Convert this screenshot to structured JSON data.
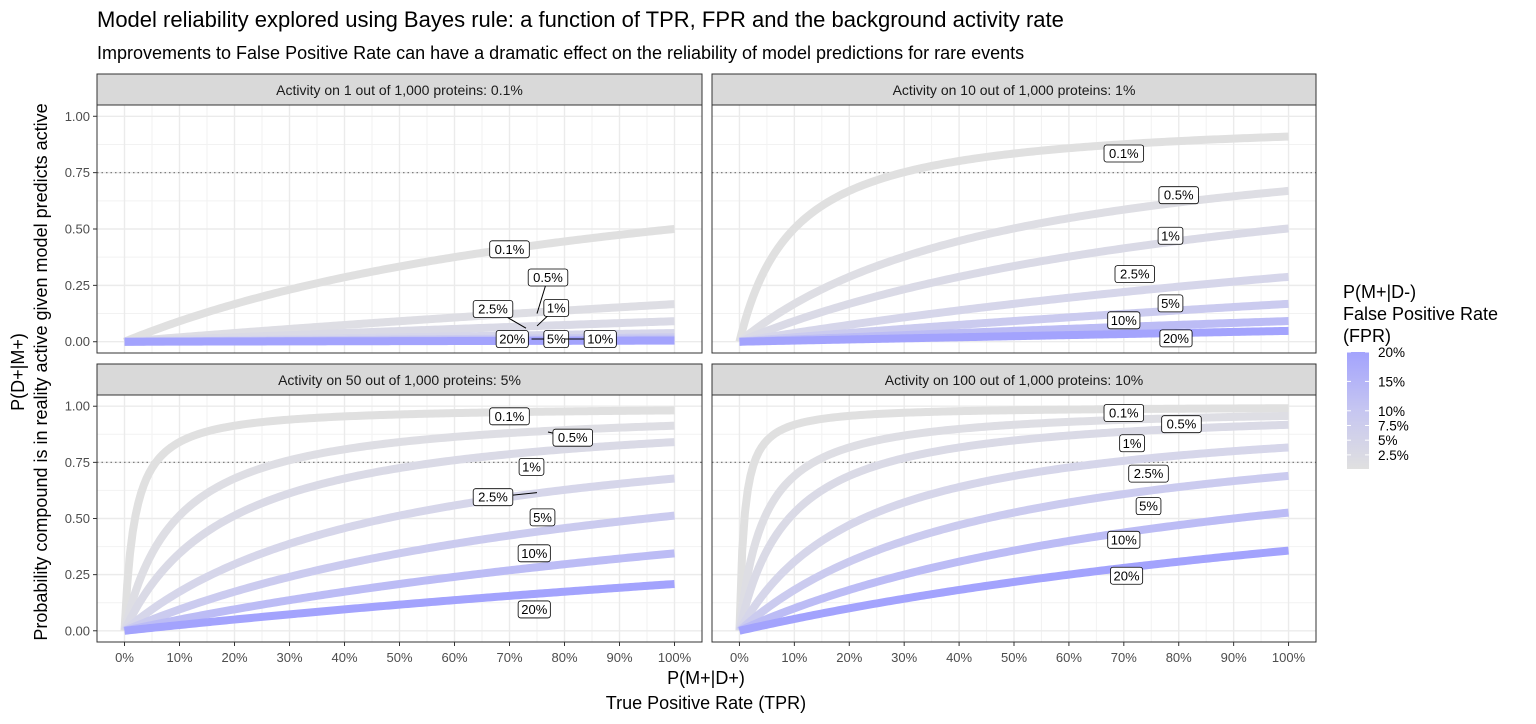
{
  "chart_data": {
    "type": "line",
    "title": "Model reliability explored using Bayes rule: a function of TPR, FPR and the background activity rate",
    "subtitle": "Improvements to False Positive Rate can have a dramatic effect on the reliability of model predictions for rare events",
    "xlabel_line1": "P(M+|D+)",
    "xlabel_line2": "True Positive Rate (TPR)",
    "ylabel_line1": "P(D+|M+)",
    "ylabel_line2": "Probability compound is in reality active given model predicts active",
    "xlim": [
      0,
      1
    ],
    "ylim": [
      0,
      1
    ],
    "x_ticks": [
      0,
      0.1,
      0.2,
      0.3,
      0.4,
      0.5,
      0.6,
      0.7,
      0.8,
      0.9,
      1.0
    ],
    "x_tick_labels": [
      "0%",
      "10%",
      "20%",
      "30%",
      "40%",
      "50%",
      "60%",
      "70%",
      "80%",
      "90%",
      "100%"
    ],
    "y_ticks": [
      0,
      0.25,
      0.5,
      0.75,
      1.0
    ],
    "y_tick_labels": [
      "0.00",
      "0.25",
      "0.50",
      "0.75",
      "1.00"
    ],
    "reference_line_y": 0.75,
    "grid": true,
    "fpr_values": [
      0.001,
      0.005,
      0.01,
      0.025,
      0.05,
      0.1,
      0.2
    ],
    "fpr_labels": [
      "0.1%",
      "0.5%",
      "1%",
      "2.5%",
      "5%",
      "10%",
      "20%"
    ],
    "fpr_colors": [
      "#e0e0e0",
      "#dedee4",
      "#dadae6",
      "#d6d6ea",
      "#cbcbef",
      "#bcbcf5",
      "#a3a3fd"
    ],
    "panels": [
      {
        "strip": "Activity on 1 out of 1,000 proteins: 0.1%",
        "prevalence": 0.001,
        "labels": [
          {
            "text": "0.1%",
            "x": 0.7,
            "y": 0.41
          },
          {
            "text": "0.5%",
            "x": 0.77,
            "y": 0.285,
            "ax": 0.75,
            "ay": 0.125
          },
          {
            "text": "1%",
            "x": 0.785,
            "y": 0.15,
            "ax": 0.75,
            "ay": 0.07
          },
          {
            "text": "2.5%",
            "x": 0.67,
            "y": 0.145,
            "ax": 0.73,
            "ay": 0.06
          },
          {
            "text": "20%",
            "x": 0.705,
            "y": 0.012
          },
          {
            "text": "5%",
            "x": 0.785,
            "y": 0.012,
            "ax": 0.74,
            "ay": 0.012
          },
          {
            "text": "10%",
            "x": 0.865,
            "y": 0.012,
            "ax": 0.8,
            "ay": 0.012
          }
        ]
      },
      {
        "strip": "Activity on 10 out of 1,000 proteins: 1%",
        "prevalence": 0.01,
        "labels": [
          {
            "text": "0.1%",
            "x": 0.7,
            "y": 0.835
          },
          {
            "text": "0.5%",
            "x": 0.8,
            "y": 0.65
          },
          {
            "text": "1%",
            "x": 0.785,
            "y": 0.47
          },
          {
            "text": "2.5%",
            "x": 0.72,
            "y": 0.3
          },
          {
            "text": "5%",
            "x": 0.785,
            "y": 0.17
          },
          {
            "text": "10%",
            "x": 0.7,
            "y": 0.095
          },
          {
            "text": "20%",
            "x": 0.795,
            "y": 0.015
          }
        ]
      },
      {
        "strip": "Activity on 50 out of 1,000 proteins: 5%",
        "prevalence": 0.05,
        "labels": [
          {
            "text": "0.1%",
            "x": 0.7,
            "y": 0.955
          },
          {
            "text": "0.5%",
            "x": 0.815,
            "y": 0.86,
            "ax": 0.77,
            "ay": 0.885
          },
          {
            "text": "1%",
            "x": 0.74,
            "y": 0.73
          },
          {
            "text": "2.5%",
            "x": 0.67,
            "y": 0.595,
            "ax": 0.75,
            "ay": 0.615
          },
          {
            "text": "5%",
            "x": 0.76,
            "y": 0.505
          },
          {
            "text": "10%",
            "x": 0.745,
            "y": 0.345
          },
          {
            "text": "20%",
            "x": 0.745,
            "y": 0.095
          }
        ]
      },
      {
        "strip": "Activity on 100 out of 1,000 proteins: 10%",
        "prevalence": 0.1,
        "labels": [
          {
            "text": "0.1%",
            "x": 0.7,
            "y": 0.97
          },
          {
            "text": "0.5%",
            "x": 0.805,
            "y": 0.92
          },
          {
            "text": "1%",
            "x": 0.715,
            "y": 0.835
          },
          {
            "text": "2.5%",
            "x": 0.745,
            "y": 0.7
          },
          {
            "text": "5%",
            "x": 0.745,
            "y": 0.555
          },
          {
            "text": "10%",
            "x": 0.7,
            "y": 0.405
          },
          {
            "text": "20%",
            "x": 0.705,
            "y": 0.245
          }
        ]
      }
    ],
    "legend": {
      "title_line1": "P(M+|D-)",
      "title_line2": "False Positive Rate",
      "title_line3": "(FPR)",
      "ticks": [
        0.2,
        0.15,
        0.1,
        0.075,
        0.05,
        0.025
      ],
      "tick_labels": [
        "20%",
        "15%",
        "10%",
        "7.5%",
        "5%",
        "2.5%"
      ],
      "placement": "right"
    }
  }
}
